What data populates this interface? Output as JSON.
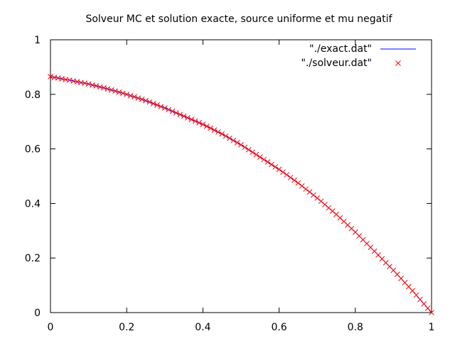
{
  "chart_data": {
    "type": "line",
    "title": "Solveur MC et solution exacte, source uniforme et mu negatif",
    "xlabel": "",
    "ylabel": "",
    "xlim": [
      0,
      1
    ],
    "ylim": [
      0,
      1
    ],
    "x_ticks": [
      "0",
      "0.2",
      "0.4",
      "0.6",
      "0.8",
      "1"
    ],
    "y_ticks": [
      "0",
      "0.2",
      "0.4",
      "0.6",
      "0.8",
      "1"
    ],
    "grid": false,
    "legend_position": "top-right",
    "series": [
      {
        "name": "\"./exact.dat\"",
        "style": "line",
        "color": "#0000ff",
        "x": [
          0,
          0.05,
          0.1,
          0.15,
          0.2,
          0.25,
          0.3,
          0.35,
          0.4,
          0.45,
          0.5,
          0.55,
          0.6,
          0.65,
          0.7,
          0.75,
          0.8,
          0.85,
          0.9,
          0.95,
          1.0
        ],
        "y": [
          0.865,
          0.852,
          0.838,
          0.82,
          0.8,
          0.777,
          0.75,
          0.72,
          0.69,
          0.655,
          0.615,
          0.57,
          0.525,
          0.475,
          0.42,
          0.36,
          0.295,
          0.225,
          0.155,
          0.08,
          0.0
        ]
      },
      {
        "name": "\"./solveur.dat\"",
        "style": "points",
        "marker": "x",
        "color": "#ff0000",
        "x": [
          0,
          0.01,
          0.02,
          0.03,
          0.04,
          0.05,
          0.06,
          0.07,
          0.08,
          0.09,
          0.1,
          0.11,
          0.12,
          0.13,
          0.14,
          0.15,
          0.16,
          0.17,
          0.18,
          0.19,
          0.2,
          0.21,
          0.22,
          0.23,
          0.24,
          0.25,
          0.26,
          0.27,
          0.28,
          0.29,
          0.3,
          0.31,
          0.32,
          0.33,
          0.34,
          0.35,
          0.36,
          0.37,
          0.38,
          0.39,
          0.4,
          0.41,
          0.42,
          0.43,
          0.44,
          0.45,
          0.46,
          0.47,
          0.48,
          0.49,
          0.5,
          0.51,
          0.52,
          0.53,
          0.54,
          0.55,
          0.56,
          0.57,
          0.58,
          0.59,
          0.6,
          0.61,
          0.62,
          0.63,
          0.64,
          0.65,
          0.66,
          0.67,
          0.68,
          0.69,
          0.7,
          0.71,
          0.72,
          0.73,
          0.74,
          0.75,
          0.76,
          0.77,
          0.78,
          0.79,
          0.8,
          0.81,
          0.82,
          0.83,
          0.84,
          0.85,
          0.86,
          0.87,
          0.88,
          0.89,
          0.9,
          0.91,
          0.92,
          0.93,
          0.94,
          0.95,
          0.96,
          0.97,
          0.98,
          0.99,
          1.0
        ],
        "y": [
          0.865,
          0.862,
          0.86,
          0.857,
          0.854,
          0.852,
          0.849,
          0.846,
          0.843,
          0.841,
          0.838,
          0.834,
          0.831,
          0.827,
          0.824,
          0.82,
          0.816,
          0.812,
          0.808,
          0.804,
          0.8,
          0.795,
          0.791,
          0.786,
          0.782,
          0.777,
          0.772,
          0.766,
          0.761,
          0.755,
          0.75,
          0.744,
          0.738,
          0.732,
          0.726,
          0.72,
          0.714,
          0.708,
          0.702,
          0.696,
          0.69,
          0.683,
          0.676,
          0.669,
          0.662,
          0.655,
          0.647,
          0.639,
          0.631,
          0.623,
          0.615,
          0.606,
          0.597,
          0.588,
          0.579,
          0.57,
          0.561,
          0.552,
          0.543,
          0.534,
          0.525,
          0.515,
          0.505,
          0.495,
          0.485,
          0.475,
          0.464,
          0.453,
          0.442,
          0.431,
          0.42,
          0.408,
          0.396,
          0.384,
          0.372,
          0.36,
          0.347,
          0.334,
          0.321,
          0.308,
          0.295,
          0.281,
          0.267,
          0.253,
          0.239,
          0.225,
          0.211,
          0.197,
          0.183,
          0.169,
          0.155,
          0.14,
          0.125,
          0.11,
          0.095,
          0.08,
          0.064,
          0.048,
          0.032,
          0.016,
          0.0
        ]
      }
    ]
  }
}
